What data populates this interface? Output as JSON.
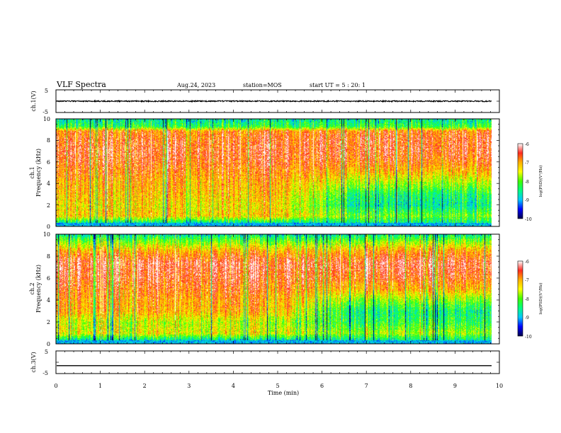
{
  "header": {
    "title": "VLF Spectra",
    "date": "Aug.24, 2023",
    "station": "station=MOS",
    "start_ut": "start  UT =  5 : 20: 1"
  },
  "colors": {
    "spectrogram_scale": [
      "#00004a",
      "#0000ff",
      "#00c8ff",
      "#00ff80",
      "#40ff00",
      "#ffff00",
      "#ffb000",
      "#ff2a20",
      "#ffffff"
    ]
  },
  "chart_data": [
    {
      "type": "line",
      "name": "ch1-waveform",
      "ylabel": "ch.1(V)",
      "ylim": [
        -5,
        5
      ],
      "ytick_labels": [
        "5",
        "-5"
      ],
      "xlim": [
        0,
        10
      ],
      "trace_level": 0.0
    },
    {
      "type": "heatmap",
      "name": "ch1-spectrogram",
      "ylabel_channel": "ch.1",
      "ylabel": "Frequency (kHz)",
      "xlim": [
        0,
        10
      ],
      "ylim": [
        0,
        10
      ],
      "ytick_labels": [
        "0",
        "2",
        "4",
        "6",
        "8",
        "10"
      ],
      "data_end_min": 9.83,
      "colorbar": {
        "label": "log(PSD)(V²/Hz)",
        "range": [
          -10,
          -6
        ],
        "ticks": [
          "-6",
          "-7",
          "-8",
          "-9",
          "-10"
        ]
      },
      "profile_khz": [
        0.4,
        1,
        2,
        3,
        4,
        5,
        6,
        7,
        8,
        8.9,
        9.3,
        10
      ],
      "profile_first_half": [
        -8.5,
        -7.2,
        -7.3,
        -7.1,
        -7.0,
        -6.8,
        -6.6,
        -6.5,
        -6.6,
        -6.8,
        -8.2,
        -8.6
      ],
      "profile_second_half": [
        -8.5,
        -8.0,
        -8.6,
        -8.4,
        -7.8,
        -7.2,
        -6.8,
        -6.6,
        -6.6,
        -6.8,
        -8.2,
        -8.6
      ]
    },
    {
      "type": "heatmap",
      "name": "ch2-spectrogram",
      "ylabel_channel": "ch.2",
      "ylabel": "Frequency (kHz)",
      "xlim": [
        0,
        10
      ],
      "ylim": [
        0,
        10
      ],
      "ytick_labels": [
        "0",
        "2",
        "4",
        "6",
        "8",
        "10"
      ],
      "data_end_min": 9.83,
      "colorbar": {
        "label": "log(PSD)(V²/Hz)",
        "range": [
          -10,
          -6
        ],
        "ticks": [
          "-6",
          "-7",
          "-8",
          "-9",
          "-10"
        ]
      },
      "profile_khz": [
        0.4,
        1,
        2,
        3,
        4,
        5,
        6,
        7,
        7.5,
        8.5,
        9.5,
        10
      ],
      "profile_first_half": [
        -8.6,
        -7.4,
        -7.6,
        -7.0,
        -6.9,
        -6.7,
        -6.5,
        -6.4,
        -6.4,
        -7.0,
        -8.0,
        -8.6
      ],
      "profile_second_half": [
        -8.6,
        -7.8,
        -8.3,
        -8.5,
        -7.9,
        -7.1,
        -6.7,
        -6.5,
        -6.5,
        -7.0,
        -8.0,
        -8.6
      ]
    },
    {
      "type": "line",
      "name": "ch3-waveform",
      "ylabel": "ch.3(V)",
      "ylim": [
        -5,
        5
      ],
      "ytick_labels": [
        "5",
        "-5"
      ],
      "xlim": [
        0,
        10
      ],
      "trace_level": -1.5,
      "xlabel": "Time  (min)",
      "xtick_labels": [
        "0",
        "1",
        "2",
        "3",
        "4",
        "5",
        "6",
        "7",
        "8",
        "9",
        "10"
      ]
    }
  ]
}
